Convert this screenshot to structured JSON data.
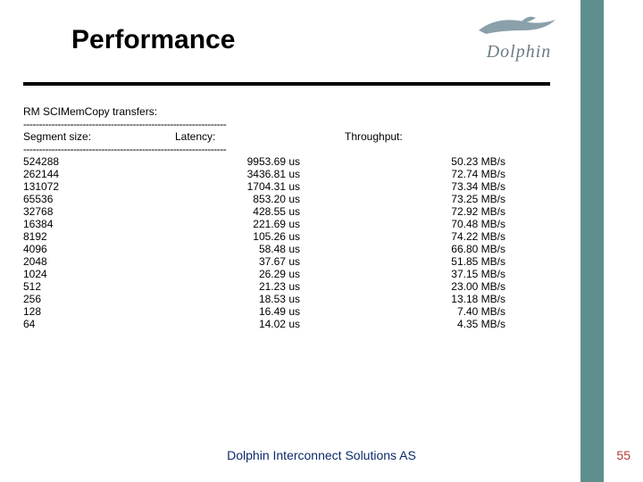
{
  "title": "Performance",
  "title_fontsize": 30,
  "title_weight": 700,
  "rule_width": 590,
  "logo": {
    "text": "Dolphin",
    "color": "#6b7b84",
    "fontsize": 20
  },
  "sidebar_color": "#5e8f8f",
  "table": {
    "caption": "RM SCIMemCopy transfers:",
    "separator": "-----------------------------------------------------------------",
    "fontsize": 12,
    "headers": {
      "seg": "Segment size:",
      "lat": "Latency:",
      "thr": "Throughput:"
    },
    "rows": [
      {
        "seg": "524288",
        "lat": "9953.69 us",
        "thr": "50.23 MB/s"
      },
      {
        "seg": "262144",
        "lat": "3436.81 us",
        "thr": "72.74 MB/s"
      },
      {
        "seg": "131072",
        "lat": "1704.31 us",
        "thr": "73.34 MB/s"
      },
      {
        "seg": "65536",
        "lat": "853.20 us",
        "thr": "73.25 MB/s"
      },
      {
        "seg": "32768",
        "lat": "428.55 us",
        "thr": "72.92 MB/s"
      },
      {
        "seg": "16384",
        "lat": "221.69 us",
        "thr": "70.48 MB/s"
      },
      {
        "seg": "8192",
        "lat": "105.26 us",
        "thr": "74.22 MB/s"
      },
      {
        "seg": "4096",
        "lat": "58.48 us",
        "thr": "66.80 MB/s"
      },
      {
        "seg": "2048",
        "lat": "37.67 us",
        "thr": "51.85 MB/s"
      },
      {
        "seg": "1024",
        "lat": "26.29 us",
        "thr": "37.15 MB/s"
      },
      {
        "seg": "512",
        "lat": "21.23 us",
        "thr": "23.00 MB/s"
      },
      {
        "seg": "256",
        "lat": "18.53 us",
        "thr": "13.18 MB/s"
      },
      {
        "seg": "128",
        "lat": "16.49 us",
        "thr": "7.40 MB/s"
      },
      {
        "seg": "64",
        "lat": "14.02 us",
        "thr": "4.35 MB/s"
      }
    ]
  },
  "footer": {
    "text": "Dolphin Interconnect Solutions AS",
    "fontsize": 14,
    "color": "#0a2a6b"
  },
  "page_number": "55",
  "page_number_color": "#b23a3a",
  "page_number_fontsize": 14
}
